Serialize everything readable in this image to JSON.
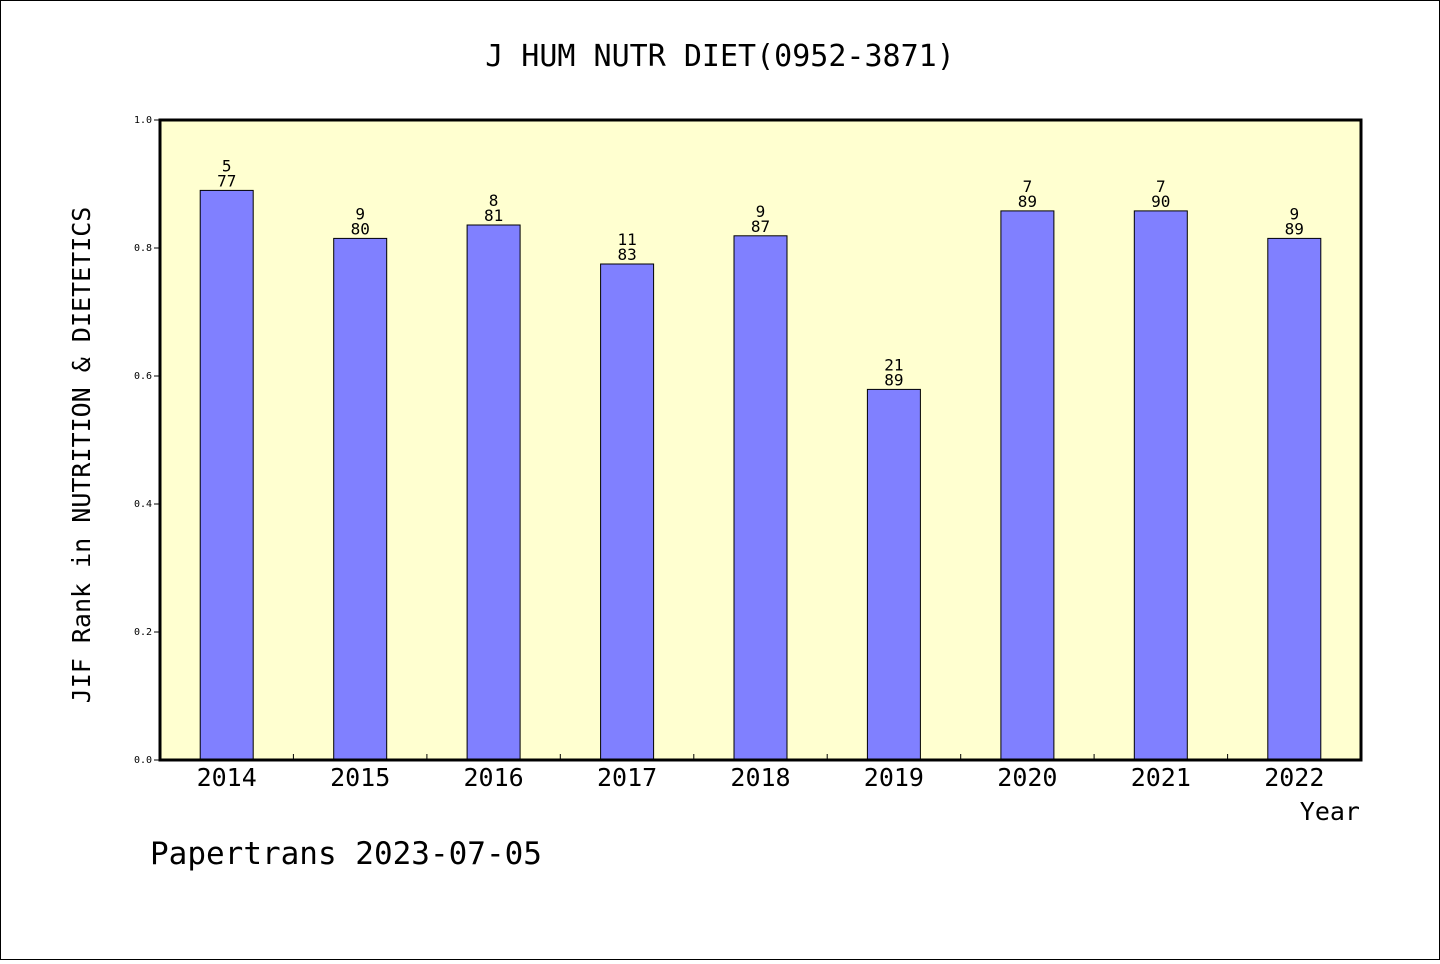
{
  "chart_data": {
    "type": "bar",
    "title": "J HUM NUTR DIET(0952-3871)",
    "xlabel": "Year",
    "ylabel": "JIF Rank in NUTRITION & DIETETICS",
    "categories": [
      "2014",
      "2015",
      "2016",
      "2017",
      "2018",
      "2019",
      "2020",
      "2021",
      "2022"
    ],
    "values": [
      0.89,
      0.815,
      0.836,
      0.775,
      0.819,
      0.579,
      0.858,
      0.858,
      0.815
    ],
    "rank_labels": [
      {
        "rank": "5",
        "total": "77"
      },
      {
        "rank": "9",
        "total": "80"
      },
      {
        "rank": "8",
        "total": "81"
      },
      {
        "rank": "11",
        "total": "83"
      },
      {
        "rank": "9",
        "total": "87"
      },
      {
        "rank": "21",
        "total": "89"
      },
      {
        "rank": "7",
        "total": "89"
      },
      {
        "rank": "7",
        "total": "90"
      },
      {
        "rank": "9",
        "total": "89"
      }
    ],
    "ylim": [
      0,
      1.0
    ],
    "yticks": [
      "0.0",
      "0.2",
      "0.4",
      "0.6",
      "0.8",
      "1.0"
    ],
    "grid": false,
    "colors": {
      "bar": "#8080ff",
      "plot_background": "#ffffd0",
      "frame": "#000000"
    },
    "footer": "Papertrans 2023-07-05"
  }
}
